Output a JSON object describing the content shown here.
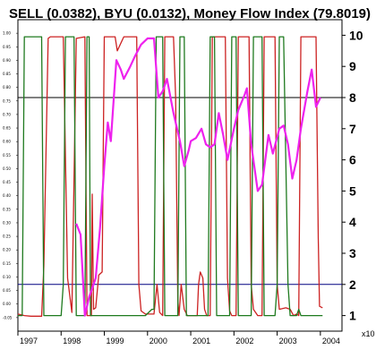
{
  "chart_data": {
    "type": "line",
    "title": "SELL (0.0382), BYU (0.0132), Money Flow Index (79.8019)",
    "x_tick_labels": [
      "1997",
      "1998",
      "1999",
      "2000",
      "2001",
      "2002",
      "2003",
      "2004"
    ],
    "x_ticks": [
      1997,
      1998,
      1999,
      2000,
      2001,
      2002,
      2003,
      2004
    ],
    "xlim": [
      1997,
      2004.5
    ],
    "right_axis": {
      "ticks": [
        1,
        2,
        3,
        4,
        5,
        6,
        7,
        8,
        9,
        10
      ],
      "tick_labels": [
        "1",
        "2",
        "3",
        "4",
        "5",
        "6",
        "7",
        "8",
        "9",
        "10"
      ],
      "ylim": [
        0.5,
        10.5
      ],
      "units_label": "x10"
    },
    "left_axis": {
      "ticks": [
        -0.05,
        0,
        0.05,
        0.1,
        0.15,
        0.2,
        0.25,
        0.3,
        0.35,
        0.4,
        0.45,
        0.5,
        0.55,
        0.6,
        0.65,
        0.7,
        0.75,
        0.8,
        0.85,
        0.9,
        0.95,
        1
      ],
      "tick_labels": [
        "-0.05",
        "0.00",
        "0.05",
        "0.10",
        "0.15",
        "0.20",
        "0.25",
        "0.30",
        "0.35",
        "0.40",
        "0.45",
        "0.50",
        "0.55",
        "0.60",
        "0.65",
        "0.70",
        "0.75",
        "0.80",
        "0.85",
        "0.90",
        "0.95",
        "1.00"
      ],
      "ylim": [
        -0.1,
        1.05
      ]
    },
    "reference_lines": [
      {
        "y": 8,
        "color": "#000000"
      },
      {
        "y": 2,
        "color": "#000080"
      }
    ],
    "grid": false,
    "series": [
      {
        "color": "#cc2222",
        "axis": "right",
        "points": [
          [
            1997,
            1.05
          ],
          [
            1997.15,
            1.0
          ],
          [
            1997.3,
            0.98
          ],
          [
            1997.55,
            0.98
          ],
          [
            1997.6,
            2.6
          ],
          [
            1997.7,
            9.9
          ],
          [
            1997.75,
            9.95
          ],
          [
            1998.05,
            9.95
          ],
          [
            1998.15,
            2.2
          ],
          [
            1998.25,
            1.1
          ],
          [
            1998.35,
            9.9
          ],
          [
            1998.55,
            9.95
          ],
          [
            1998.6,
            1.0
          ],
          [
            1998.7,
            1.0
          ],
          [
            1998.72,
            4.9
          ],
          [
            1998.75,
            1.2
          ],
          [
            1998.8,
            1.25
          ],
          [
            1998.87,
            2.3
          ],
          [
            1998.95,
            2.4
          ],
          [
            1999.0,
            9.95
          ],
          [
            1999.25,
            9.95
          ],
          [
            1999.3,
            9.5
          ],
          [
            1999.45,
            9.95
          ],
          [
            1999.75,
            9.95
          ],
          [
            1999.8,
            2.0
          ],
          [
            1999.85,
            1.15
          ],
          [
            1999.95,
            1.05
          ],
          [
            2000.15,
            1.05
          ],
          [
            2000.22,
            2.0
          ],
          [
            2000.28,
            1.1
          ],
          [
            2000.35,
            1.0
          ],
          [
            2000.4,
            9.95
          ],
          [
            2000.6,
            9.95
          ],
          [
            2000.65,
            8.0
          ],
          [
            2000.7,
            1.5
          ],
          [
            2000.73,
            1.0
          ],
          [
            2000.78,
            2.0
          ],
          [
            2000.85,
            1.2
          ],
          [
            2000.92,
            1.0
          ],
          [
            2001.15,
            1.0
          ],
          [
            2001.18,
            2.0
          ],
          [
            2001.22,
            2.4
          ],
          [
            2001.28,
            2.2
          ],
          [
            2001.32,
            1.2
          ],
          [
            2001.37,
            1.0
          ],
          [
            2001.45,
            1.0
          ],
          [
            2001.5,
            9.95
          ],
          [
            2001.8,
            9.95
          ],
          [
            2001.85,
            2.2
          ],
          [
            2001.9,
            1.15
          ],
          [
            2001.95,
            1.0
          ],
          [
            2002.05,
            1.0
          ],
          [
            2002.1,
            9.95
          ],
          [
            2002.35,
            9.95
          ],
          [
            2002.4,
            2.0
          ],
          [
            2002.45,
            1.2
          ],
          [
            2002.55,
            1.0
          ],
          [
            2002.65,
            1.0
          ],
          [
            2002.7,
            9.95
          ],
          [
            2002.95,
            9.95
          ],
          [
            2003.0,
            2.0
          ],
          [
            2003.05,
            1.2
          ],
          [
            2003.2,
            1.25
          ],
          [
            2003.3,
            1.2
          ],
          [
            2003.38,
            1.0
          ],
          [
            2003.45,
            1.05
          ],
          [
            2003.5,
            1.0
          ],
          [
            2003.55,
            9.95
          ],
          [
            2003.9,
            9.95
          ],
          [
            2003.95,
            3.5
          ],
          [
            2003.98,
            1.3
          ],
          [
            2004.05,
            1.25
          ]
        ]
      },
      {
        "color": "#1f7a1f",
        "axis": "right",
        "points": [
          [
            1997,
            1.0
          ],
          [
            1997.1,
            1.0
          ],
          [
            1997.15,
            9.95
          ],
          [
            1997.55,
            9.95
          ],
          [
            1997.6,
            1.0
          ],
          [
            1997.75,
            1.0
          ],
          [
            1998.0,
            1.0
          ],
          [
            1998.05,
            2.0
          ],
          [
            1998.1,
            9.95
          ],
          [
            1998.3,
            9.95
          ],
          [
            1998.35,
            1.0
          ],
          [
            1998.55,
            1.0
          ],
          [
            1998.6,
            9.95
          ],
          [
            1998.65,
            9.95
          ],
          [
            1998.68,
            1.0
          ],
          [
            1998.75,
            1.0
          ],
          [
            1999.0,
            1.0
          ],
          [
            1999.5,
            1.0
          ],
          [
            1999.8,
            1.0
          ],
          [
            1999.95,
            1.0
          ],
          [
            2000.1,
            1.2
          ],
          [
            2000.15,
            1.2
          ],
          [
            2000.2,
            9.95
          ],
          [
            2000.35,
            9.95
          ],
          [
            2000.4,
            1.0
          ],
          [
            2000.6,
            1.0
          ],
          [
            2000.7,
            1.0
          ],
          [
            2000.75,
            9.95
          ],
          [
            2000.85,
            9.95
          ],
          [
            2000.9,
            1.0
          ],
          [
            2001.3,
            1.0
          ],
          [
            2001.4,
            1.0
          ],
          [
            2001.45,
            9.95
          ],
          [
            2001.55,
            9.95
          ],
          [
            2001.6,
            1.0
          ],
          [
            2001.85,
            1.0
          ],
          [
            2001.9,
            1.0
          ],
          [
            2001.95,
            9.95
          ],
          [
            2002.05,
            9.95
          ],
          [
            2002.1,
            1.0
          ],
          [
            2002.35,
            1.0
          ],
          [
            2002.4,
            1.0
          ],
          [
            2002.45,
            9.95
          ],
          [
            2002.65,
            9.95
          ],
          [
            2002.7,
            1.0
          ],
          [
            2002.95,
            1.0
          ],
          [
            2003.0,
            2.0
          ],
          [
            2003.05,
            9.95
          ],
          [
            2003.15,
            9.95
          ],
          [
            2003.25,
            2.0
          ],
          [
            2003.3,
            1.0
          ],
          [
            2003.45,
            1.0
          ],
          [
            2003.5,
            1.2
          ],
          [
            2003.55,
            1.0
          ],
          [
            2004.05,
            1.0
          ]
        ]
      },
      {
        "color": "#ee22ee",
        "axis": "right",
        "points": [
          [
            1998.35,
            3.95
          ],
          [
            1998.45,
            3.6
          ],
          [
            1998.55,
            1.0
          ],
          [
            1998.65,
            1.6
          ],
          [
            1998.8,
            2.2
          ],
          [
            1998.9,
            3.8
          ],
          [
            1999.0,
            5.8
          ],
          [
            1999.08,
            7.2
          ],
          [
            1999.15,
            6.6
          ],
          [
            1999.28,
            9.2
          ],
          [
            1999.38,
            8.9
          ],
          [
            1999.45,
            8.6
          ],
          [
            1999.6,
            9.0
          ],
          [
            1999.7,
            9.3
          ],
          [
            1999.85,
            9.7
          ],
          [
            2000.0,
            9.9
          ],
          [
            2000.15,
            9.9
          ],
          [
            2000.25,
            8.0
          ],
          [
            2000.35,
            8.2
          ],
          [
            2000.45,
            8.6
          ],
          [
            2000.6,
            7.5
          ],
          [
            2000.75,
            6.6
          ],
          [
            2000.85,
            5.8
          ],
          [
            2000.95,
            6.3
          ],
          [
            2001.0,
            6.6
          ],
          [
            2001.12,
            6.7
          ],
          [
            2001.25,
            7.0
          ],
          [
            2001.35,
            6.5
          ],
          [
            2001.45,
            6.4
          ],
          [
            2001.55,
            6.5
          ],
          [
            2001.65,
            7.5
          ],
          [
            2001.75,
            6.8
          ],
          [
            2001.85,
            6.0
          ],
          [
            2002.0,
            7.0
          ],
          [
            2002.1,
            7.6
          ],
          [
            2002.25,
            8.1
          ],
          [
            2002.3,
            8.3
          ],
          [
            2002.4,
            6.5
          ],
          [
            2002.55,
            5.0
          ],
          [
            2002.65,
            5.2
          ],
          [
            2002.8,
            6.8
          ],
          [
            2002.9,
            6.2
          ],
          [
            2003.05,
            7.0
          ],
          [
            2003.15,
            7.1
          ],
          [
            2003.25,
            6.5
          ],
          [
            2003.35,
            5.4
          ],
          [
            2003.45,
            6.0
          ],
          [
            2003.55,
            7.0
          ],
          [
            2003.7,
            8.2
          ],
          [
            2003.8,
            8.9
          ],
          [
            2003.9,
            7.7
          ],
          [
            2004.0,
            8.0
          ]
        ]
      }
    ]
  }
}
